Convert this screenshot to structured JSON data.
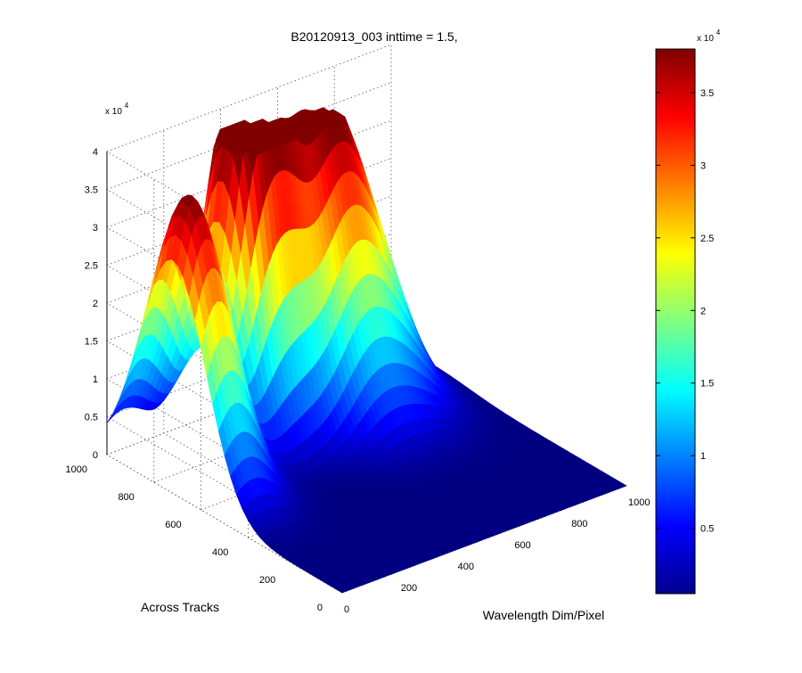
{
  "figure": {
    "title": "B20120913_003 inttime = 1.5,"
  },
  "chart_data": {
    "type": "surface",
    "title": "B20120913_003 inttime = 1.5,",
    "xlabel": "Wavelength Dim/Pixel",
    "ylabel": "Across Tracks",
    "zlabel": "",
    "xlim": [
      0,
      1000
    ],
    "ylim": [
      0,
      1000
    ],
    "zlim": [
      0,
      40000
    ],
    "x_ticks": [
      0,
      200,
      400,
      600,
      800,
      1000
    ],
    "y_ticks": [
      0,
      200,
      400,
      600,
      800,
      1000
    ],
    "z_ticks": [
      0,
      5000,
      10000,
      15000,
      20000,
      25000,
      30000,
      35000,
      40000
    ],
    "z_tick_labels": [
      "0",
      "0.5",
      "1",
      "1.5",
      "2",
      "2.5",
      "3",
      "3.5",
      "4"
    ],
    "z_multiplier": "x 10",
    "z_multiplier_exp": "4",
    "grid": true,
    "colormap": "jet",
    "peaks": [
      {
        "x": 60,
        "y": 720,
        "z": 38500
      },
      {
        "x": 330,
        "y": 860,
        "z": 36000
      },
      {
        "x": 430,
        "y": 860,
        "z": 35000
      },
      {
        "x": 580,
        "y": 830,
        "z": 28000
      },
      {
        "x": 720,
        "y": 830,
        "z": 25000
      }
    ],
    "colorbar": {
      "ticks": [
        5000,
        10000,
        15000,
        20000,
        25000,
        30000,
        35000
      ],
      "tick_labels": [
        "0.5",
        "1",
        "1.5",
        "2",
        "2.5",
        "3",
        "3.5"
      ],
      "range": [
        500,
        38000
      ],
      "multiplier": "x 10",
      "multiplier_exp": "4"
    }
  }
}
